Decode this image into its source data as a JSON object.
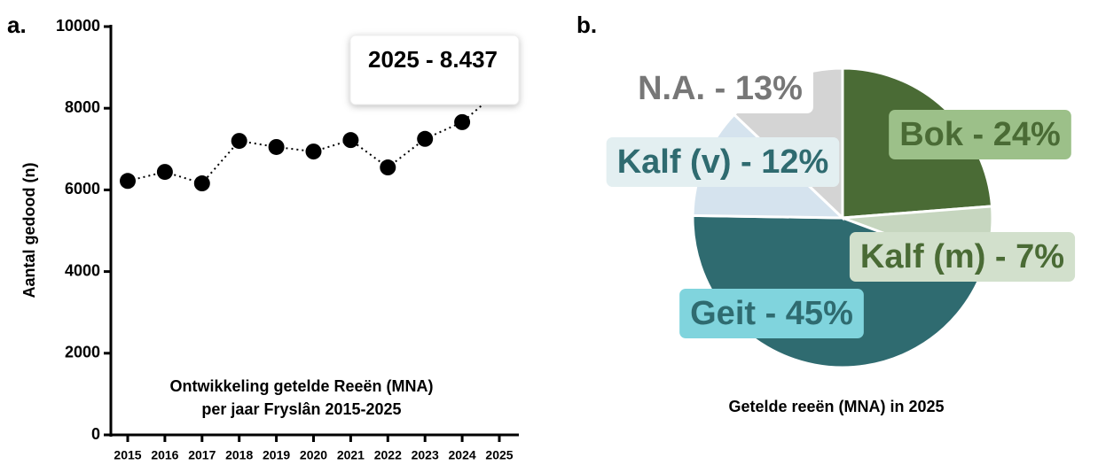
{
  "chart_data": [
    {
      "type": "line",
      "panel": "a.",
      "title": [
        "Ontwikkeling getelde Reeën (MNA)",
        "per jaar Fryslân 2015-2025"
      ],
      "y_label": "Aantal gedood (n)",
      "categories": [
        "2015",
        "2016",
        "2017",
        "2018",
        "2019",
        "2020",
        "2021",
        "2022",
        "2023",
        "2024",
        "2025"
      ],
      "values": [
        6220,
        6440,
        6160,
        7200,
        7050,
        6940,
        7220,
        6550,
        7250,
        7660,
        8437
      ],
      "color": "#000000",
      "annotation": "2025 - 8.437",
      "ylim": [
        0,
        10000
      ],
      "yticks": [
        0,
        2000,
        4000,
        6000,
        8000,
        10000
      ],
      "grid": false
    },
    {
      "type": "pie",
      "panel": "b.",
      "title": "Getelde reeën (MNA) in 2025",
      "values": [
        24,
        7,
        45,
        12,
        13
      ],
      "value_labels": [
        "Bok - 24%",
        "Kalf (m) - 7%",
        "Geit - 45%",
        "Kalf (v) - 12%",
        "N.A. - 13%"
      ],
      "colors": [
        "#4a6b35",
        "#c6d6bf",
        "#2f6b70",
        "#d5e3ee",
        "#d4d4d4"
      ]
    }
  ]
}
